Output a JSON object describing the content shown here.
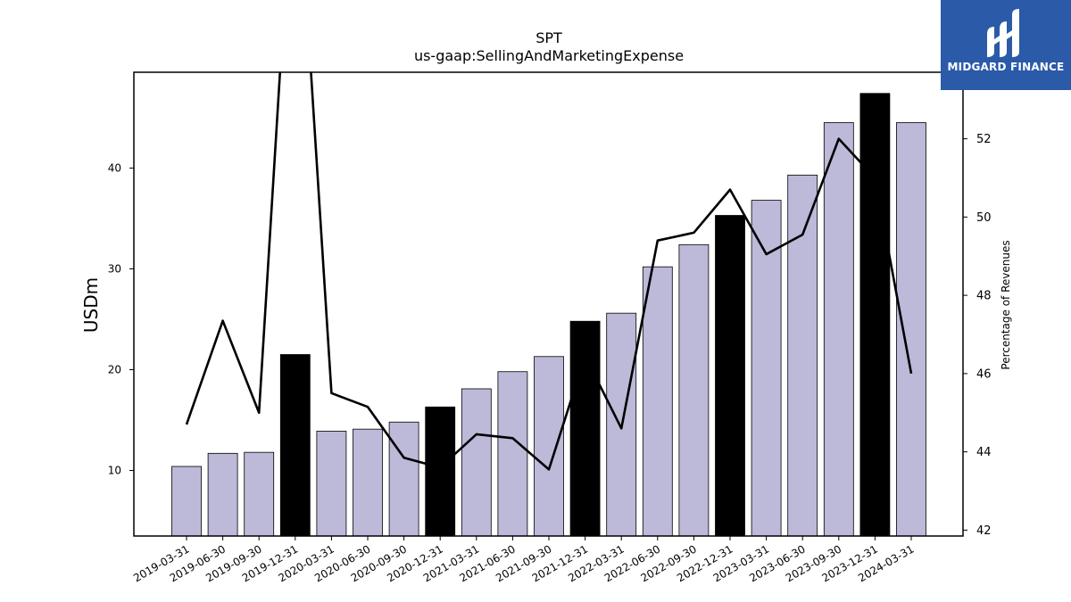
{
  "chart_data": {
    "type": "bar",
    "title": "SPT",
    "subtitle": "us-gaap:SellingAndMarketingExpense",
    "ylabel": "USDm",
    "ylabel_right": "Percentage of Revenues",
    "categories": [
      "2019-03-31",
      "2019-06-30",
      "2019-09-30",
      "2019-12-31",
      "2020-03-31",
      "2020-06-30",
      "2020-09-30",
      "2020-12-31",
      "2021-03-31",
      "2021-06-30",
      "2021-09-30",
      "2021-12-31",
      "2022-03-31",
      "2022-06-30",
      "2022-09-30",
      "2022-12-31",
      "2023-03-31",
      "2023-06-30",
      "2023-09-30",
      "2023-12-31",
      "2024-03-31"
    ],
    "values": [
      10.4,
      11.7,
      11.8,
      21.5,
      13.9,
      14.1,
      14.8,
      16.3,
      18.1,
      19.8,
      21.3,
      24.8,
      25.6,
      30.2,
      32.4,
      35.3,
      36.8,
      39.3,
      44.5,
      47.4,
      44.5
    ],
    "highlight_indices": [
      3,
      7,
      11,
      15,
      19
    ],
    "ylim": [
      3.5,
      49.5
    ],
    "yticks": [
      10,
      20,
      30,
      40
    ],
    "line_series": {
      "name": "Percentage of Revenues",
      "values": [
        44.7,
        47.35,
        45.0,
        60.0,
        45.5,
        45.15,
        43.85,
        43.6,
        44.45,
        44.35,
        43.55,
        46.45,
        44.6,
        49.4,
        49.6,
        50.7,
        49.05,
        49.55,
        52.0,
        51.0,
        46.0
      ]
    },
    "ylim_right": [
      41.85,
      53.7
    ],
    "yticks_right": [
      42,
      44,
      46,
      48,
      50,
      52
    ],
    "colors": {
      "bar": "#bcb9d9",
      "bar_highlight": "#000000",
      "line": "#000000"
    }
  },
  "logo": {
    "text": "MIDGARD FINANCE",
    "color": "#2b5aa8"
  }
}
